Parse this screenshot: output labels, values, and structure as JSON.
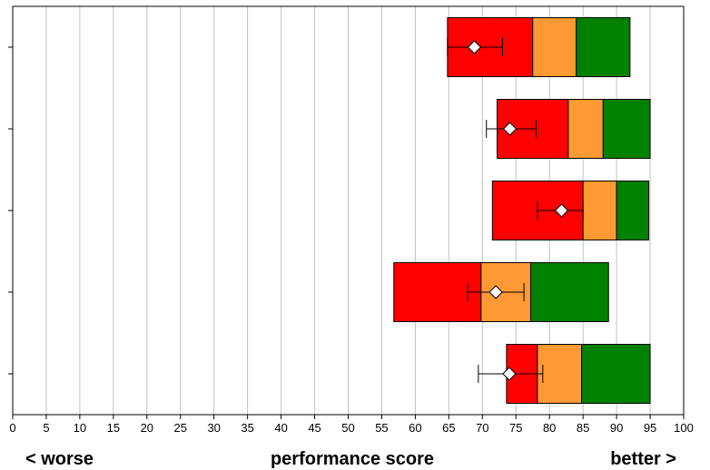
{
  "chart_data": {
    "type": "bar",
    "orientation": "horizontal",
    "x_ticks": [
      0,
      5,
      10,
      15,
      20,
      25,
      30,
      35,
      40,
      45,
      50,
      55,
      60,
      65,
      70,
      75,
      80,
      85,
      90,
      95,
      100
    ],
    "xlim": [
      0,
      100
    ],
    "grid": "vertical",
    "legend": "none",
    "bands_colors": {
      "low": "#ff0000",
      "mid": "#ff9933",
      "high": "#008000"
    },
    "marker_fill": "#ffffff",
    "rows": [
      {
        "low": [
          64.8,
          77.5
        ],
        "mid": [
          77.5,
          84
        ],
        "high": [
          84,
          92
        ],
        "mean": 68.8,
        "ci": [
          64.8,
          73
        ]
      },
      {
        "low": [
          72.2,
          82.8
        ],
        "mid": [
          82.8,
          88
        ],
        "high": [
          88,
          95
        ],
        "mean": 74.1,
        "ci": [
          70.6,
          78
        ]
      },
      {
        "low": [
          71.5,
          85
        ],
        "mid": [
          85,
          90
        ],
        "high": [
          90,
          94.8
        ],
        "mean": 81.8,
        "ci": [
          78.2,
          85
        ]
      },
      {
        "low": [
          56.8,
          69.8
        ],
        "mid": [
          69.8,
          77.2
        ],
        "high": [
          77.2,
          88.8
        ],
        "mean": 72,
        "ci": [
          67.8,
          76.2
        ]
      },
      {
        "low": [
          73.6,
          78.2
        ],
        "mid": [
          78.2,
          84.8
        ],
        "high": [
          84.8,
          95
        ],
        "mean": 74,
        "ci": [
          69.4,
          79
        ]
      }
    ]
  },
  "footer": {
    "left": "< worse",
    "center": "performance score",
    "right": "better >"
  }
}
